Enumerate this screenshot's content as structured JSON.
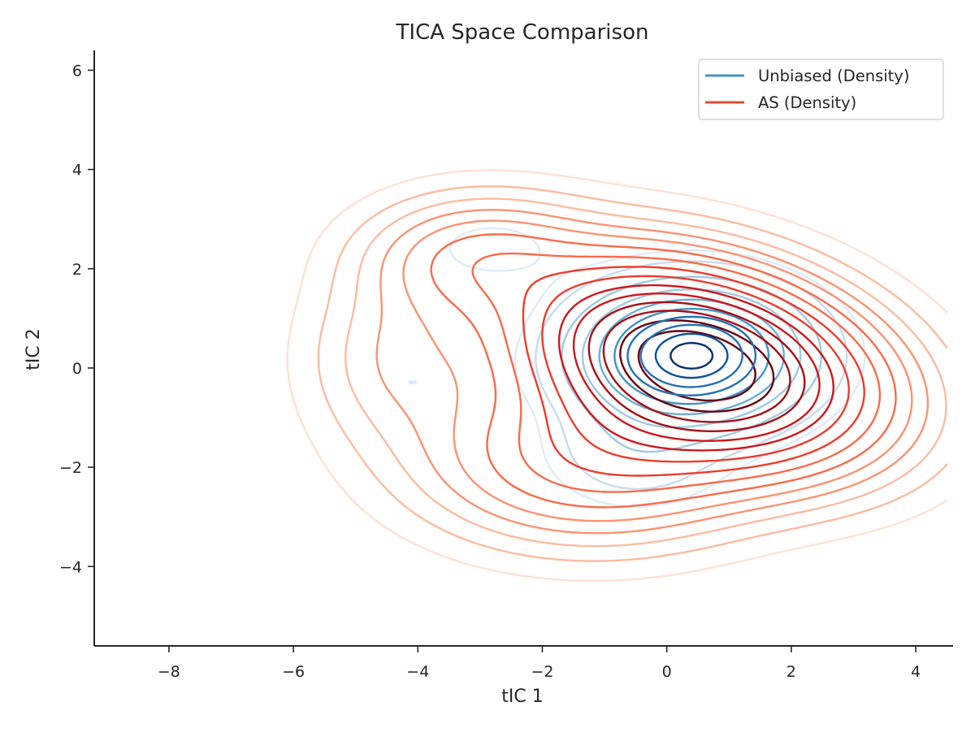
{
  "chart_data": {
    "type": "contour",
    "title": "TICA Space Comparison",
    "xlabel": "tIC 1",
    "ylabel": "tIC 2",
    "xlim": [
      -9.2,
      4.6
    ],
    "ylim": [
      -5.6,
      6.4
    ],
    "xticks": [
      -8,
      -6,
      -4,
      -2,
      0,
      2,
      4
    ],
    "yticks": [
      -4,
      -2,
      0,
      2,
      4,
      6
    ],
    "xtick_labels": [
      "−8",
      "−6",
      "−4",
      "−2",
      "0",
      "2",
      "4"
    ],
    "ytick_labels": [
      "−4",
      "−2",
      "0",
      "2",
      "4",
      "6"
    ],
    "grid": false,
    "legend_position": "top-right",
    "series": [
      {
        "name": "Unbiased (Density)",
        "color": "#4292c6",
        "colormap": "Blues",
        "level_colors": [
          "#deebf7",
          "#c6dbef",
          "#9ecae1",
          "#6baed6",
          "#4292c6",
          "#2171b5",
          "#08519c",
          "#08306b"
        ],
        "components": [
          {
            "x": 0.4,
            "y": 0.25,
            "sx": 1.05,
            "sy": 0.8,
            "rho": 0.0,
            "weight": 1.0
          },
          {
            "x": -0.5,
            "y": -1.7,
            "sx": 0.9,
            "sy": 0.7,
            "rho": 0.0,
            "weight": 0.1
          },
          {
            "x": -2.8,
            "y": 2.4,
            "sx": 0.9,
            "sy": 0.55,
            "rho": 0.0,
            "weight": 0.04
          },
          {
            "x": -4.1,
            "y": -0.3,
            "sx": 0.9,
            "sy": 0.6,
            "rho": 0.0,
            "weight": 0.03
          }
        ],
        "levels": [
          0.03,
          0.06,
          0.14,
          0.25,
          0.37,
          0.5,
          0.62,
          0.74,
          0.86,
          0.95
        ]
      },
      {
        "name": "AS (Density)",
        "color": "#e34a33",
        "colormap": "Reds",
        "level_colors": [
          "#fee0d2",
          "#fcbba1",
          "#fc9272",
          "#fb6a4a",
          "#ef3b2c",
          "#cb181d",
          "#a50f15",
          "#67000d"
        ],
        "components": [
          {
            "x": 0.5,
            "y": 0.1,
            "sx": 1.6,
            "sy": 1.15,
            "rho": -0.3,
            "weight": 1.0
          },
          {
            "x": -1.2,
            "y": -1.8,
            "sx": 1.6,
            "sy": 1.0,
            "rho": 0.0,
            "weight": 0.22
          },
          {
            "x": -3.0,
            "y": 2.2,
            "sx": 1.1,
            "sy": 0.75,
            "rho": 0.0,
            "weight": 0.14
          },
          {
            "x": -4.2,
            "y": 0.2,
            "sx": 0.95,
            "sy": 1.1,
            "rho": 0.0,
            "weight": 0.07
          }
        ],
        "levels": [
          0.01,
          0.025,
          0.045,
          0.07,
          0.1,
          0.14,
          0.19,
          0.25,
          0.32,
          0.4,
          0.48,
          0.57,
          0.66,
          0.76,
          0.86
        ]
      }
    ]
  }
}
